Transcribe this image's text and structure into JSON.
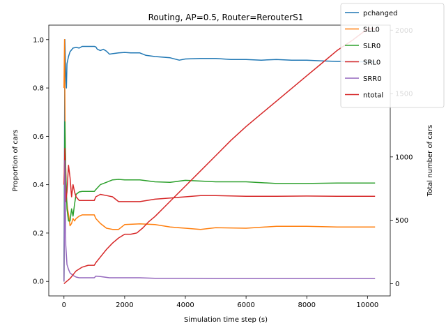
{
  "chart_data": {
    "type": "line",
    "title": "Routing, AP=0.5, Router=RerouterS1",
    "xlabel": "Simulation time step (s)",
    "ylabel": "Proportion of cars",
    "y2label": "Total number of cars",
    "y2label_color": "#d62728",
    "xlim": [
      -500,
      10750
    ],
    "ylim": [
      -0.06,
      1.06
    ],
    "y2lim": [
      -97,
      2040
    ],
    "xticks": [
      0,
      2000,
      4000,
      6000,
      8000,
      10000
    ],
    "yticks": [
      0.0,
      0.2,
      0.4,
      0.6,
      0.8,
      1.0
    ],
    "y2ticks": [
      0,
      500,
      1000,
      1500,
      2000
    ],
    "legend_position": "top-right",
    "series": [
      {
        "name": "pchanged",
        "color": "#1f77b4",
        "axis": "left",
        "x": [
          0,
          30,
          60,
          80,
          100,
          150,
          200,
          300,
          400,
          500,
          600,
          800,
          1000,
          1050,
          1100,
          1200,
          1300,
          1400,
          1500,
          1600,
          1800,
          2000,
          2200,
          2500,
          2700,
          3000,
          3500,
          3800,
          4000,
          4500,
          5000,
          5500,
          6000,
          6500,
          7000,
          7500,
          8000,
          8500,
          9000,
          9500,
          10000,
          10250
        ],
        "y": [
          0.0,
          1.0,
          0.85,
          0.8,
          0.9,
          0.93,
          0.95,
          0.965,
          0.968,
          0.965,
          0.972,
          0.972,
          0.972,
          0.97,
          0.96,
          0.955,
          0.96,
          0.952,
          0.94,
          0.942,
          0.945,
          0.947,
          0.945,
          0.945,
          0.935,
          0.93,
          0.925,
          0.915,
          0.92,
          0.922,
          0.922,
          0.918,
          0.918,
          0.915,
          0.918,
          0.915,
          0.915,
          0.912,
          0.91,
          0.91,
          0.908,
          0.908
        ]
      },
      {
        "name": "SLL0",
        "color": "#ff7f0e",
        "axis": "left",
        "x": [
          0,
          20,
          40,
          60,
          80,
          120,
          160,
          200,
          250,
          300,
          350,
          400,
          500,
          600,
          800,
          1000,
          1050,
          1200,
          1400,
          1600,
          1800,
          2000,
          2500,
          3000,
          3500,
          4000,
          4500,
          5000,
          6000,
          7000,
          8000,
          9000,
          10000,
          10250
        ],
        "y": [
          0.8,
          1.0,
          0.6,
          0.45,
          0.35,
          0.3,
          0.27,
          0.23,
          0.24,
          0.26,
          0.25,
          0.26,
          0.27,
          0.275,
          0.275,
          0.275,
          0.26,
          0.24,
          0.22,
          0.215,
          0.215,
          0.235,
          0.238,
          0.235,
          0.225,
          0.22,
          0.215,
          0.222,
          0.22,
          0.228,
          0.228,
          0.225,
          0.225,
          0.225
        ]
      },
      {
        "name": "SLR0",
        "color": "#2ca02c",
        "axis": "left",
        "x": [
          0,
          30,
          60,
          100,
          150,
          200,
          250,
          300,
          350,
          400,
          500,
          600,
          800,
          1000,
          1050,
          1200,
          1400,
          1600,
          1800,
          2000,
          2500,
          3000,
          3500,
          4000,
          5000,
          6000,
          7000,
          8000,
          9000,
          10000,
          10250
        ],
        "y": [
          0.0,
          0.66,
          0.45,
          0.3,
          0.25,
          0.25,
          0.3,
          0.27,
          0.32,
          0.36,
          0.37,
          0.372,
          0.372,
          0.372,
          0.38,
          0.4,
          0.41,
          0.42,
          0.422,
          0.42,
          0.42,
          0.412,
          0.41,
          0.418,
          0.412,
          0.412,
          0.405,
          0.405,
          0.407,
          0.407,
          0.407
        ]
      },
      {
        "name": "SRL0",
        "color": "#d62728",
        "axis": "left",
        "x": [
          0,
          30,
          60,
          100,
          150,
          200,
          250,
          300,
          350,
          400,
          500,
          600,
          800,
          1000,
          1050,
          1200,
          1400,
          1600,
          1800,
          2000,
          2500,
          3000,
          3500,
          4000,
          4500,
          5000,
          6000,
          7000,
          8000,
          9000,
          10000,
          10250
        ],
        "y": [
          0.4,
          0.55,
          0.33,
          0.37,
          0.48,
          0.43,
          0.35,
          0.4,
          0.37,
          0.35,
          0.335,
          0.335,
          0.335,
          0.335,
          0.35,
          0.36,
          0.355,
          0.35,
          0.33,
          0.33,
          0.33,
          0.34,
          0.345,
          0.35,
          0.355,
          0.355,
          0.352,
          0.352,
          0.353,
          0.352,
          0.352,
          0.352
        ]
      },
      {
        "name": "SRR0",
        "color": "#9467bd",
        "axis": "left",
        "x": [
          0,
          30,
          60,
          100,
          150,
          200,
          300,
          400,
          500,
          800,
          1000,
          1050,
          1200,
          1500,
          2000,
          2500,
          3000,
          4000,
          5000,
          6000,
          7000,
          8000,
          9000,
          10000,
          10250
        ],
        "y": [
          0.0,
          0.5,
          0.15,
          0.07,
          0.05,
          0.035,
          0.025,
          0.018,
          0.015,
          0.015,
          0.015,
          0.022,
          0.02,
          0.015,
          0.015,
          0.015,
          0.013,
          0.013,
          0.012,
          0.012,
          0.012,
          0.012,
          0.012,
          0.012,
          0.012
        ]
      },
      {
        "name": "ntotal",
        "color": "#d62728",
        "axis": "right",
        "x": [
          0,
          100,
          200,
          300,
          400,
          600,
          800,
          1000,
          1050,
          1200,
          1400,
          1600,
          1800,
          2000,
          2200,
          2400,
          2600,
          2800,
          3000,
          3500,
          4000,
          4500,
          5000,
          5500,
          6000,
          6500,
          7000,
          7500,
          8000,
          8500,
          9000,
          9500,
          10000,
          10250
        ],
        "y": [
          0,
          20,
          40,
          70,
          100,
          130,
          145,
          145,
          165,
          210,
          270,
          320,
          360,
          390,
          390,
          400,
          440,
          490,
          530,
          650,
          770,
          890,
          1010,
          1130,
          1240,
          1340,
          1440,
          1540,
          1640,
          1740,
          1840,
          1920,
          2010,
          2010
        ]
      }
    ]
  }
}
